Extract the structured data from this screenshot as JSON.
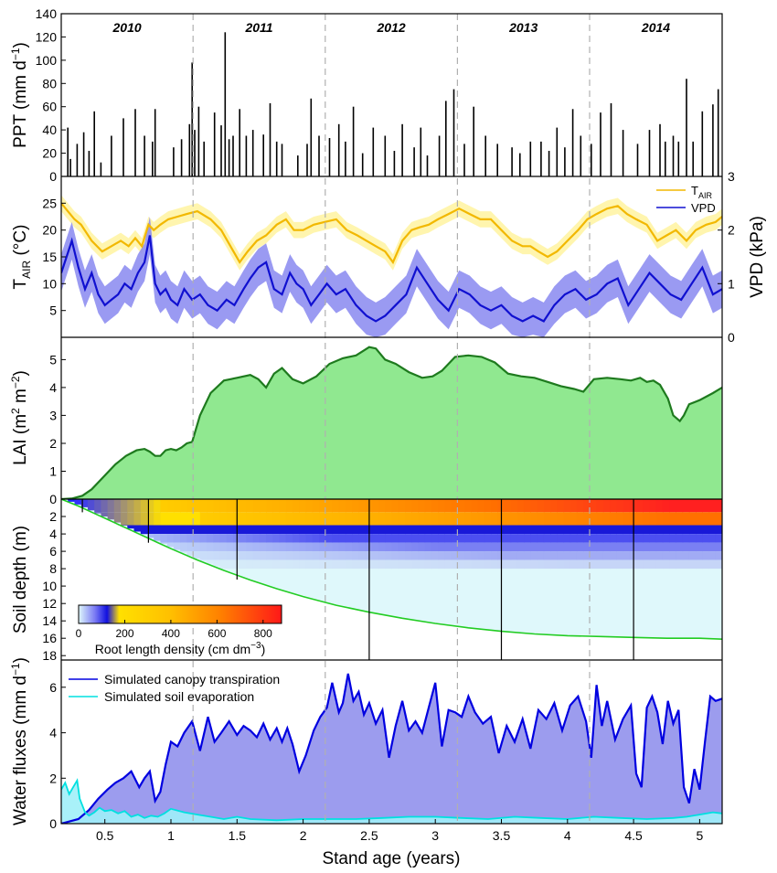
{
  "colors": {
    "axis": "#000000",
    "separator": "#b0b0b0",
    "ppt_bar": "#000000",
    "tair": "#f2b800",
    "tair_band": "#fff3a0",
    "vpd": "#1010d0",
    "vpd_band": "#8888f0",
    "lai_fill": "#90e890",
    "lai_line": "#1e7a1e",
    "root_depth_line": "#22cc22",
    "soil_bg": "#dff8fb",
    "transp_line": "#0000e0",
    "transp_fill": "#9c9cee",
    "evap_line": "#00e0e0",
    "evap_fill": "#a0f0f8"
  },
  "chart_data": [
    {
      "type": "bar",
      "panel": "precipitation",
      "ylabel": "PPT (mm d",
      "ylabel_sup": "−1",
      "ylabel_close": ")",
      "ylim": [
        0,
        140
      ],
      "yticks": [
        "0",
        "20",
        "40",
        "60",
        "80",
        "100",
        "120",
        "140"
      ],
      "year_labels": [
        "2010",
        "2011",
        "2012",
        "2013",
        "2014"
      ],
      "year_boundaries": [
        1.167,
        2.167,
        3.167,
        4.167
      ],
      "x": [
        0.22,
        0.24,
        0.29,
        0.34,
        0.38,
        0.42,
        0.47,
        0.55,
        0.64,
        0.73,
        0.8,
        0.86,
        0.88,
        1.02,
        1.08,
        1.14,
        1.16,
        1.18,
        1.21,
        1.25,
        1.33,
        1.38,
        1.41,
        1.44,
        1.47,
        1.52,
        1.57,
        1.62,
        1.7,
        1.75,
        1.8,
        1.84,
        1.96,
        2.03,
        2.06,
        2.12,
        2.2,
        2.27,
        2.32,
        2.38,
        2.45,
        2.53,
        2.62,
        2.69,
        2.75,
        2.84,
        2.89,
        2.94,
        3.03,
        3.08,
        3.14,
        3.22,
        3.29,
        3.38,
        3.47,
        3.58,
        3.64,
        3.72,
        3.8,
        3.86,
        3.92,
        3.98,
        4.04,
        4.1,
        4.18,
        4.25,
        4.33,
        4.42,
        4.53,
        4.62,
        4.7,
        4.74,
        4.8,
        4.84,
        4.9,
        4.95,
        5.02,
        5.1,
        5.14
      ],
      "values": [
        42,
        15,
        28,
        38,
        22,
        56,
        12,
        35,
        50,
        58,
        35,
        30,
        58,
        25,
        32,
        45,
        98,
        40,
        60,
        30,
        55,
        44,
        124,
        32,
        35,
        58,
        35,
        40,
        36,
        63,
        30,
        28,
        18,
        28,
        67,
        35,
        33,
        45,
        30,
        60,
        20,
        42,
        35,
        22,
        45,
        25,
        42,
        18,
        35,
        65,
        75,
        28,
        60,
        35,
        28,
        25,
        20,
        30,
        30,
        22,
        42,
        25,
        58,
        35,
        28,
        55,
        63,
        40,
        28,
        40,
        45,
        30,
        35,
        30,
        84,
        30,
        56,
        62,
        75
      ]
    },
    {
      "type": "line",
      "panel": "air temperature and vapour pressure deficit",
      "ylabel_left": "T",
      "ylabel_left_sub": "AIR",
      "ylabel_left_unit": " (°C)",
      "ylabel_right": "VPD (kPa)",
      "ylim_left": [
        0,
        30
      ],
      "ylim_right": [
        0,
        3
      ],
      "yticks_left": [
        "5",
        "10",
        "15",
        "20",
        "25"
      ],
      "yticks_right": [
        "0",
        "1",
        "2",
        "3"
      ],
      "legend_position": "top-right",
      "legend_tair_main": "T",
      "legend_tair_sub": "AIR",
      "series": [
        {
          "name": "TAIR",
          "axis": "left",
          "x": [
            0.17,
            0.22,
            0.27,
            0.32,
            0.4,
            0.48,
            0.55,
            0.62,
            0.68,
            0.73,
            0.78,
            0.83,
            0.87,
            0.92,
            0.98,
            1.05,
            1.12,
            1.2,
            1.3,
            1.38,
            1.45,
            1.52,
            1.58,
            1.65,
            1.72,
            1.8,
            1.87,
            1.93,
            2.0,
            2.08,
            2.16,
            2.25,
            2.33,
            2.41,
            2.48,
            2.55,
            2.62,
            2.68,
            2.75,
            2.82,
            2.88,
            2.95,
            3.02,
            3.1,
            3.18,
            3.26,
            3.34,
            3.42,
            3.5,
            3.58,
            3.66,
            3.72,
            3.78,
            3.85,
            3.92,
            4.0,
            4.08,
            4.15,
            4.22,
            4.3,
            4.38,
            4.45,
            4.52,
            4.6,
            4.68,
            4.75,
            4.82,
            4.9,
            4.97,
            5.05,
            5.12,
            5.17
          ],
          "values": [
            25,
            23.5,
            22,
            21,
            18,
            16,
            17,
            18,
            17,
            18.5,
            17,
            21,
            20,
            21,
            22,
            22.5,
            23,
            23.5,
            22,
            20,
            17,
            14,
            16,
            18,
            19,
            21,
            22,
            20,
            20,
            21,
            21.5,
            22,
            20,
            19,
            18,
            17,
            16,
            14,
            18,
            20,
            20.5,
            21,
            22,
            23,
            24,
            23,
            22,
            22,
            20,
            18,
            17,
            17,
            16,
            15,
            16,
            18,
            20,
            22,
            23,
            24,
            24.5,
            23,
            22,
            21,
            18,
            19,
            20,
            18,
            20,
            21,
            21.5,
            22.5
          ]
        },
        {
          "name": "VPD",
          "axis": "right",
          "x": [
            0.17,
            0.21,
            0.25,
            0.3,
            0.35,
            0.4,
            0.45,
            0.5,
            0.55,
            0.6,
            0.65,
            0.7,
            0.75,
            0.8,
            0.84,
            0.88,
            0.92,
            0.96,
            1.0,
            1.05,
            1.1,
            1.16,
            1.22,
            1.28,
            1.35,
            1.42,
            1.48,
            1.55,
            1.6,
            1.66,
            1.72,
            1.78,
            1.84,
            1.9,
            1.95,
            2.0,
            2.06,
            2.12,
            2.18,
            2.25,
            2.32,
            2.4,
            2.48,
            2.55,
            2.62,
            2.7,
            2.78,
            2.86,
            2.94,
            3.02,
            3.1,
            3.18,
            3.26,
            3.34,
            3.42,
            3.5,
            3.58,
            3.66,
            3.74,
            3.82,
            3.9,
            3.98,
            4.06,
            4.14,
            4.22,
            4.3,
            4.38,
            4.46,
            4.54,
            4.62,
            4.7,
            4.78,
            4.86,
            4.94,
            5.02,
            5.1,
            5.17
          ],
          "values": [
            1.2,
            1.5,
            1.8,
            1.3,
            0.9,
            1.2,
            0.8,
            0.6,
            0.7,
            0.8,
            1.0,
            0.9,
            1.2,
            1.4,
            1.9,
            1.0,
            0.8,
            0.9,
            0.7,
            0.6,
            0.9,
            0.7,
            0.8,
            0.6,
            0.5,
            0.7,
            0.6,
            0.9,
            1.1,
            1.3,
            1.4,
            0.9,
            0.8,
            1.2,
            1.0,
            0.9,
            0.6,
            0.8,
            1.0,
            0.8,
            0.9,
            0.6,
            0.4,
            0.3,
            0.4,
            0.6,
            0.8,
            1.3,
            1.0,
            0.7,
            0.5,
            0.9,
            0.8,
            0.6,
            0.5,
            0.6,
            0.4,
            0.3,
            0.4,
            0.3,
            0.6,
            0.8,
            0.9,
            0.7,
            0.8,
            1.0,
            1.1,
            0.6,
            0.9,
            1.2,
            1.0,
            0.8,
            0.7,
            1.0,
            1.3,
            0.8,
            0.9
          ]
        }
      ]
    },
    {
      "type": "area",
      "panel": "leaf area index",
      "ylabel": "LAI (m",
      "ylabel_sup1": "2",
      "ylabel_mid": " m",
      "ylabel_sup2": "−2",
      "ylabel_close": ")",
      "ylim": [
        0,
        5.8
      ],
      "yticks": [
        "1",
        "2",
        "3",
        "4",
        "5"
      ],
      "x": [
        0.17,
        0.25,
        0.33,
        0.4,
        0.5,
        0.58,
        0.66,
        0.74,
        0.8,
        0.84,
        0.88,
        0.92,
        0.96,
        1.0,
        1.04,
        1.08,
        1.12,
        1.16,
        1.22,
        1.3,
        1.4,
        1.5,
        1.6,
        1.66,
        1.72,
        1.78,
        1.84,
        1.92,
        2.0,
        2.1,
        2.2,
        2.3,
        2.4,
        2.5,
        2.55,
        2.62,
        2.7,
        2.8,
        2.9,
        2.98,
        3.05,
        3.15,
        3.25,
        3.35,
        3.45,
        3.55,
        3.65,
        3.75,
        3.85,
        3.95,
        4.05,
        4.12,
        4.2,
        4.3,
        4.4,
        4.48,
        4.55,
        4.6,
        4.65,
        4.7,
        4.76,
        4.8,
        4.85,
        4.88,
        4.92,
        5.0,
        5.1,
        5.17
      ],
      "values": [
        0.0,
        0.02,
        0.12,
        0.35,
        0.85,
        1.25,
        1.55,
        1.75,
        1.8,
        1.7,
        1.55,
        1.55,
        1.75,
        1.8,
        1.75,
        1.85,
        2.0,
        2.05,
        3.0,
        3.8,
        4.25,
        4.35,
        4.45,
        4.3,
        4.0,
        4.5,
        4.7,
        4.3,
        4.15,
        4.4,
        4.85,
        5.05,
        5.15,
        5.45,
        5.4,
        5.0,
        4.85,
        4.55,
        4.35,
        4.4,
        4.6,
        5.1,
        5.15,
        5.1,
        4.9,
        4.5,
        4.4,
        4.35,
        4.2,
        4.05,
        3.95,
        3.85,
        4.3,
        4.35,
        4.3,
        4.25,
        4.35,
        4.2,
        4.25,
        4.1,
        3.6,
        3.0,
        2.8,
        3.0,
        3.4,
        3.55,
        3.8,
        4.0
      ]
    },
    {
      "type": "heatmap",
      "panel": "root length density by soil depth",
      "ylabel": "Soil depth (m)",
      "ylim": [
        18.5,
        0
      ],
      "yticks": [
        "0",
        "2",
        "4",
        "6",
        "8",
        "10",
        "12",
        "14",
        "16",
        "18"
      ],
      "colorbar_label": "Root length density (cm dm",
      "colorbar_sup": "−3",
      "colorbar_close": ")",
      "colorbar_ticks": [
        "0",
        "200",
        "400",
        "600",
        "800"
      ],
      "colorbar_range": [
        0,
        880
      ],
      "profile_ages": [
        0.33,
        0.83,
        1.5,
        2.5,
        3.5,
        4.5
      ],
      "root_front_depth": {
        "x": [
          0.17,
          0.3,
          0.4,
          0.5,
          0.6,
          0.7,
          0.8,
          0.9,
          1.0,
          1.2,
          1.4,
          1.6,
          1.8,
          2.0,
          2.25,
          2.5,
          2.75,
          3.0,
          3.25,
          3.5,
          3.75,
          4.0,
          4.25,
          4.5,
          4.75,
          5.0,
          5.17
        ],
        "values": [
          0.0,
          0.8,
          1.5,
          2.2,
          2.9,
          3.6,
          4.3,
          5.0,
          5.7,
          7.0,
          8.2,
          9.3,
          10.3,
          11.2,
          12.2,
          13.0,
          13.7,
          14.3,
          14.8,
          15.2,
          15.5,
          15.7,
          15.8,
          15.9,
          16.0,
          16.0,
          16.1
        ]
      }
    },
    {
      "type": "area",
      "panel": "water fluxes",
      "ylabel": "Water fluxes (mm d",
      "ylabel_sup": "−1",
      "ylabel_close": ")",
      "xlabel": "Stand age (years)",
      "xticks": [
        "0.5",
        "1",
        "1.5",
        "2",
        "2.5",
        "3",
        "3.5",
        "4",
        "4.5",
        "5"
      ],
      "xlim": [
        0.17,
        5.17
      ],
      "ylim": [
        0,
        7.2
      ],
      "yticks": [
        "0",
        "2",
        "4",
        "6"
      ],
      "legend_position": "top-left",
      "series": [
        {
          "name": "Simulated canopy transpiration",
          "x": [
            0.17,
            0.3,
            0.38,
            0.45,
            0.52,
            0.58,
            0.64,
            0.7,
            0.76,
            0.8,
            0.84,
            0.88,
            0.92,
            0.96,
            1.0,
            1.05,
            1.1,
            1.16,
            1.22,
            1.28,
            1.33,
            1.38,
            1.44,
            1.5,
            1.55,
            1.6,
            1.65,
            1.7,
            1.75,
            1.8,
            1.84,
            1.88,
            1.92,
            1.97,
            2.02,
            2.08,
            2.13,
            2.18,
            2.22,
            2.27,
            2.3,
            2.34,
            2.38,
            2.42,
            2.46,
            2.5,
            2.55,
            2.6,
            2.65,
            2.7,
            2.75,
            2.8,
            2.85,
            2.9,
            2.95,
            3.0,
            3.05,
            3.1,
            3.15,
            3.2,
            3.25,
            3.3,
            3.36,
            3.42,
            3.48,
            3.54,
            3.6,
            3.66,
            3.72,
            3.78,
            3.84,
            3.9,
            3.96,
            4.02,
            4.08,
            4.14,
            4.18,
            4.22,
            4.26,
            4.3,
            4.36,
            4.42,
            4.48,
            4.52,
            4.56,
            4.6,
            4.64,
            4.68,
            4.72,
            4.76,
            4.8,
            4.84,
            4.88,
            4.92,
            4.96,
            5.0,
            5.04,
            5.08,
            5.12,
            5.17
          ],
          "values": [
            0.0,
            0.2,
            0.6,
            1.1,
            1.5,
            1.8,
            2.0,
            2.3,
            1.6,
            2.0,
            2.3,
            1.0,
            1.4,
            2.6,
            3.6,
            3.4,
            4.0,
            4.5,
            3.2,
            4.7,
            3.6,
            4.0,
            4.5,
            3.9,
            4.3,
            4.1,
            3.8,
            4.4,
            3.7,
            4.2,
            3.6,
            4.2,
            3.5,
            2.3,
            3.0,
            4.1,
            4.7,
            5.1,
            6.2,
            4.9,
            5.3,
            6.6,
            5.4,
            5.8,
            4.8,
            5.3,
            4.4,
            5.0,
            2.9,
            4.3,
            5.4,
            4.1,
            4.5,
            4.0,
            5.1,
            6.2,
            3.4,
            5.0,
            4.9,
            4.7,
            5.6,
            4.9,
            4.4,
            4.7,
            3.1,
            4.3,
            3.6,
            4.6,
            3.3,
            5.0,
            4.6,
            5.3,
            4.1,
            5.2,
            5.6,
            4.5,
            2.9,
            6.1,
            4.3,
            5.4,
            3.7,
            4.6,
            5.2,
            2.2,
            1.6,
            5.1,
            5.6,
            4.9,
            3.5,
            5.4,
            4.4,
            5.0,
            1.6,
            0.9,
            2.4,
            1.5,
            3.6,
            5.6,
            5.4,
            5.5
          ]
        },
        {
          "name": "Simulated soil evaporation",
          "x": [
            0.17,
            0.2,
            0.23,
            0.26,
            0.29,
            0.31,
            0.33,
            0.35,
            0.38,
            0.42,
            0.46,
            0.5,
            0.55,
            0.6,
            0.65,
            0.7,
            0.75,
            0.8,
            0.85,
            0.9,
            0.95,
            1.0,
            1.1,
            1.2,
            1.3,
            1.4,
            1.5,
            1.6,
            1.8,
            2.0,
            2.2,
            2.4,
            2.6,
            2.8,
            3.0,
            3.2,
            3.4,
            3.6,
            3.8,
            4.0,
            4.2,
            4.4,
            4.6,
            4.8,
            4.9,
            5.0,
            5.1,
            5.17
          ],
          "values": [
            1.5,
            1.8,
            1.3,
            1.6,
            1.9,
            1.1,
            0.8,
            0.5,
            0.35,
            0.5,
            0.7,
            0.55,
            0.6,
            0.45,
            0.55,
            0.3,
            0.4,
            0.25,
            0.35,
            0.3,
            0.45,
            0.65,
            0.5,
            0.4,
            0.3,
            0.2,
            0.3,
            0.2,
            0.15,
            0.2,
            0.2,
            0.2,
            0.25,
            0.3,
            0.3,
            0.25,
            0.2,
            0.3,
            0.25,
            0.2,
            0.3,
            0.25,
            0.2,
            0.25,
            0.3,
            0.4,
            0.5,
            0.45
          ]
        }
      ]
    }
  ]
}
